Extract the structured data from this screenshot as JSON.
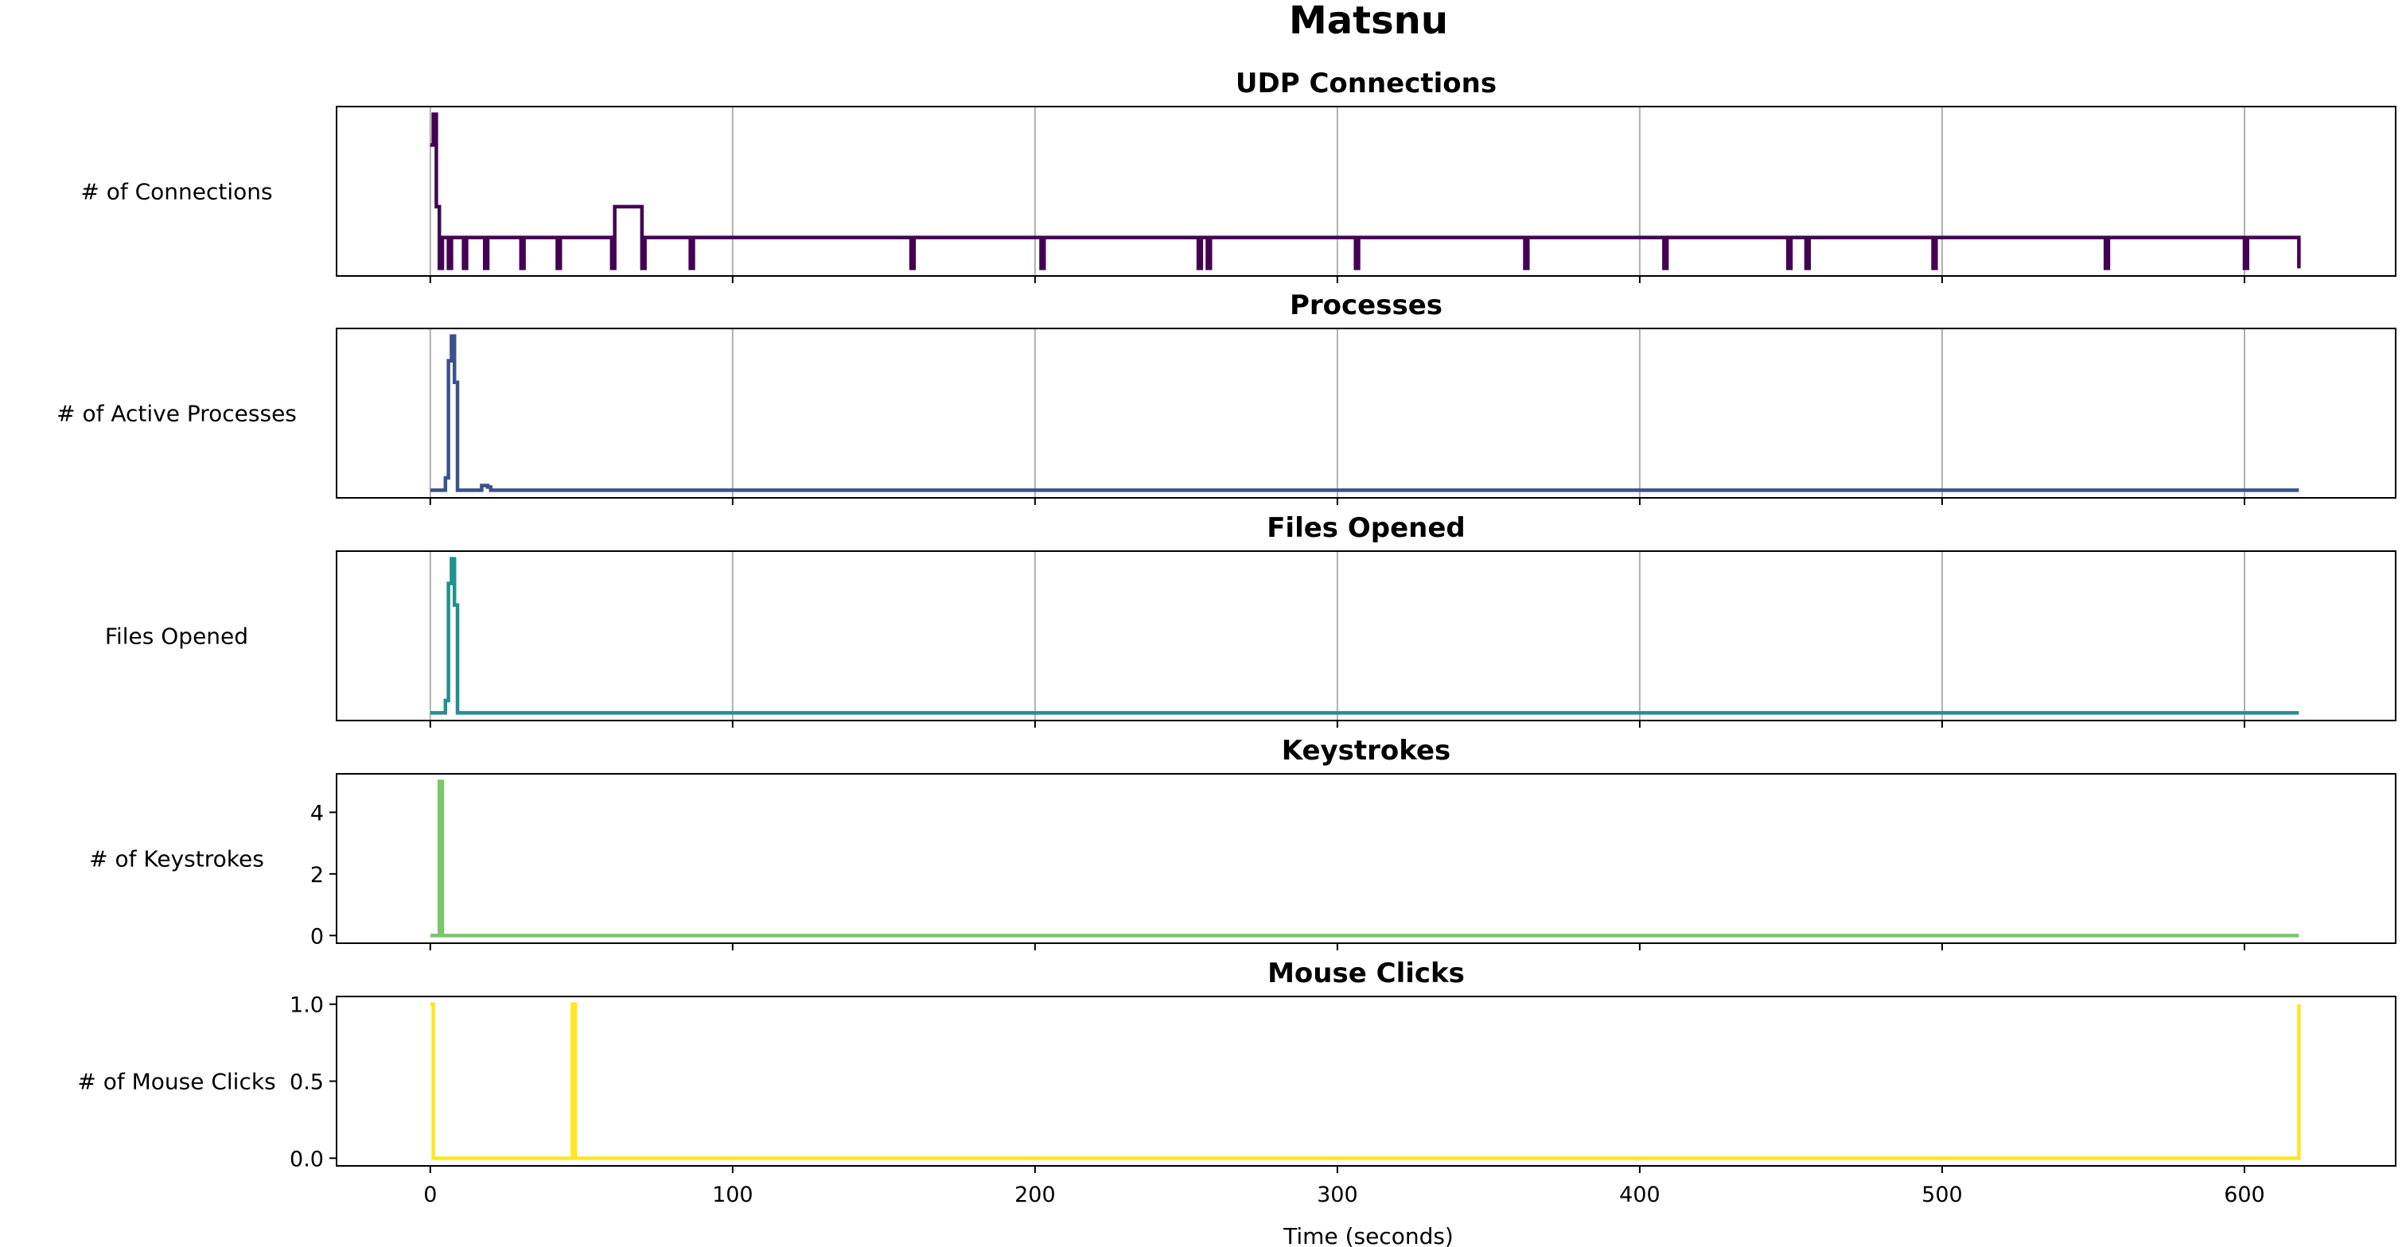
{
  "figure": {
    "title": "Matsnu",
    "xlabel": "Time (seconds)"
  },
  "chart_data": [
    {
      "type": "line",
      "title": "UDP Connections",
      "ylabel": "# of Connections",
      "color": "#440154",
      "xlim": [
        -31,
        650
      ],
      "ylim": [
        -0.25,
        5.25
      ],
      "show_yticks": false,
      "show_xticklabels": false,
      "xticks": [
        0,
        100,
        200,
        300,
        400,
        500,
        600
      ],
      "yticks": [],
      "grid": "x",
      "x": [
        0,
        1,
        2,
        3,
        4,
        6,
        7,
        11,
        12,
        18,
        19,
        30,
        31,
        42,
        43,
        60,
        61,
        70,
        71,
        86,
        87,
        159,
        160,
        202,
        203,
        254,
        255,
        257,
        258,
        306,
        307,
        362,
        363,
        408,
        409,
        449,
        450,
        455,
        456,
        497,
        498,
        554,
        555,
        600,
        601,
        618
      ],
      "values": [
        4,
        5,
        2,
        0,
        1,
        0,
        1,
        0,
        1,
        0,
        1,
        0,
        1,
        0,
        1,
        0,
        2,
        0,
        1,
        0,
        1,
        0,
        1,
        0,
        1,
        0,
        1,
        0,
        1,
        0,
        1,
        0,
        1,
        0,
        1,
        0,
        1,
        0,
        1,
        0,
        1,
        0,
        1,
        0,
        1,
        0
      ]
    },
    {
      "type": "line",
      "title": "Processes",
      "ylabel": "# of Active Processes",
      "color": "#3b528b",
      "xlim": [
        -31,
        650
      ],
      "ylim": [
        -0.25,
        5.25
      ],
      "show_yticks": false,
      "show_xticklabels": false,
      "xticks": [
        0,
        100,
        200,
        300,
        400,
        500,
        600
      ],
      "yticks": [],
      "grid": "x",
      "x": [
        0,
        5,
        6,
        7,
        8,
        9,
        17,
        19,
        20,
        618
      ],
      "values": [
        0,
        0.4,
        4.2,
        5,
        3.5,
        0,
        0.15,
        0.1,
        0,
        0
      ]
    },
    {
      "type": "line",
      "title": "Files Opened",
      "ylabel": "Files Opened",
      "color": "#21918c",
      "xlim": [
        -31,
        650
      ],
      "ylim": [
        -0.25,
        5.25
      ],
      "show_yticks": false,
      "show_xticklabels": false,
      "xticks": [
        0,
        100,
        200,
        300,
        400,
        500,
        600
      ],
      "yticks": [],
      "grid": "x",
      "x": [
        0,
        5,
        6,
        7,
        8,
        9,
        618
      ],
      "values": [
        0,
        0.4,
        4.2,
        5,
        3.5,
        0,
        0
      ]
    },
    {
      "type": "line",
      "title": "Keystrokes",
      "ylabel": "# of Keystrokes",
      "color": "#7ac66a",
      "xlim": [
        -31,
        650
      ],
      "ylim": [
        -0.25,
        5.25
      ],
      "show_yticks": true,
      "show_xticklabels": false,
      "xticks": [
        0,
        100,
        200,
        300,
        400,
        500,
        600
      ],
      "yticks": [
        0,
        2,
        4
      ],
      "yticklabels": [
        "0",
        "2",
        "4"
      ],
      "grid": "none",
      "x": [
        0,
        3,
        4,
        618
      ],
      "values": [
        0,
        5,
        0,
        0
      ]
    },
    {
      "type": "line",
      "title": "Mouse Clicks",
      "ylabel": "# of Mouse Clicks",
      "color": "#fde725",
      "xlim": [
        -31,
        650
      ],
      "ylim": [
        -0.05,
        1.05
      ],
      "show_yticks": true,
      "show_xticklabels": true,
      "xticks": [
        0,
        100,
        200,
        300,
        400,
        500,
        600
      ],
      "xticklabels": [
        "0",
        "100",
        "200",
        "300",
        "400",
        "500",
        "600"
      ],
      "yticks": [
        0,
        0.5,
        1
      ],
      "yticklabels": [
        "0.0",
        "0.5",
        "1.0"
      ],
      "grid": "none",
      "x": [
        0,
        1,
        47,
        48,
        617,
        618
      ],
      "values": [
        1,
        0,
        1,
        0,
        0,
        1
      ]
    }
  ]
}
